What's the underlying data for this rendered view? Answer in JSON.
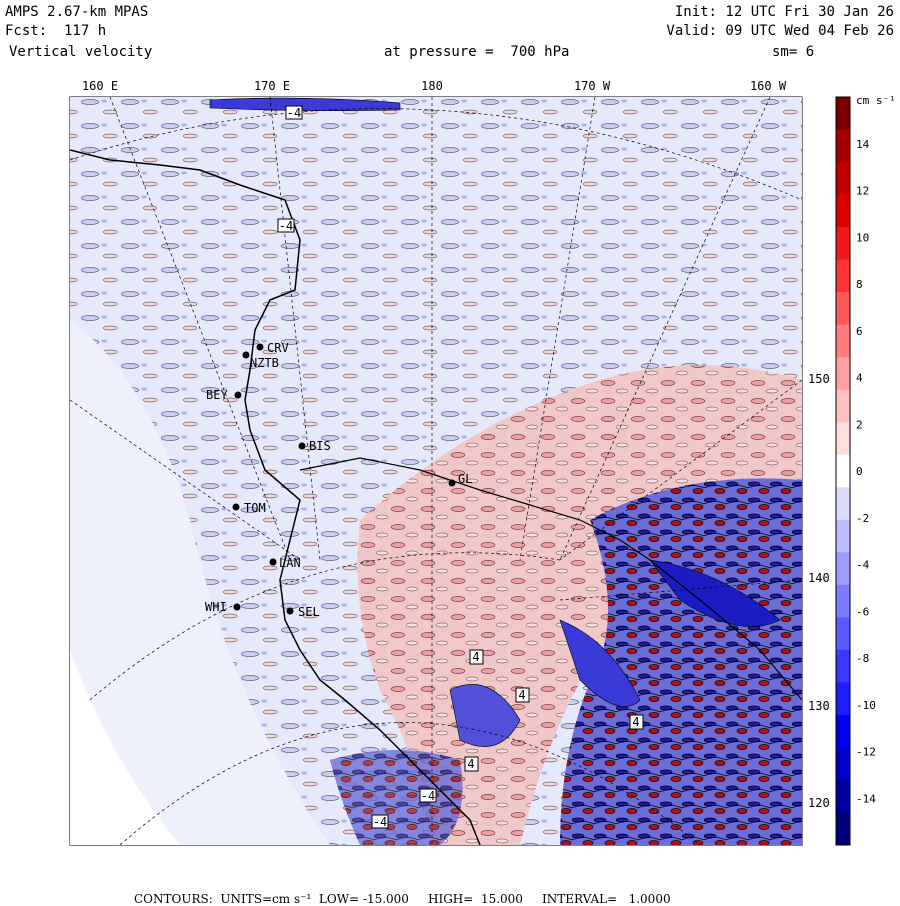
{
  "header": {
    "model": "AMPS 2.67-km MPAS",
    "forecast": "Fcst:  117 h",
    "variable": "Vertical velocity",
    "level": "at pressure =  700 hPa",
    "init": "Init: 12 UTC Fri 30 Jan 26",
    "valid": "Valid: 09 UTC Wed 04 Feb 26",
    "smoothing": "sm= 6"
  },
  "lon_labels": [
    "160 E",
    "170 E",
    "180",
    "170 W",
    "160 W"
  ],
  "lat_right_labels": [
    "150 W",
    "140 W",
    "130 W",
    "120 W"
  ],
  "stations": [
    "CRV",
    "NZTB",
    "BEY",
    "BIS",
    "GL",
    "TOM",
    "LAN",
    "WHI",
    "SEL"
  ],
  "contour_markers": [
    "-4",
    "-4",
    "4",
    "4",
    "4",
    "-4",
    "-4",
    "4"
  ],
  "colorbar": {
    "units": "cm s⁻¹",
    "ticks": [
      "14",
      "12",
      "10",
      "8",
      "6",
      "4",
      "2",
      "0",
      "-2",
      "-4",
      "-6",
      "-8",
      "-10",
      "-12",
      "-14"
    ],
    "colors": [
      "#7a0000",
      "#a50000",
      "#c00000",
      "#d80000",
      "#ee1a1a",
      "#ff3535",
      "#ff5a5a",
      "#ff7d7d",
      "#ffa0a0",
      "#ffc0c0",
      "#ffdede",
      "#ffffff",
      "#dcdcff",
      "#bcbcff",
      "#9c9cff",
      "#7c7cff",
      "#5a5aff",
      "#3a3aff",
      "#1e1eff",
      "#0000ee",
      "#0000c8",
      "#0000a0",
      "#00007a"
    ]
  },
  "footer": {
    "contours": "CONTOURS:  UNITS=cm s⁻¹  LOW= -15.000     HIGH=  15.000     INTERVAL=   1.0000"
  }
}
